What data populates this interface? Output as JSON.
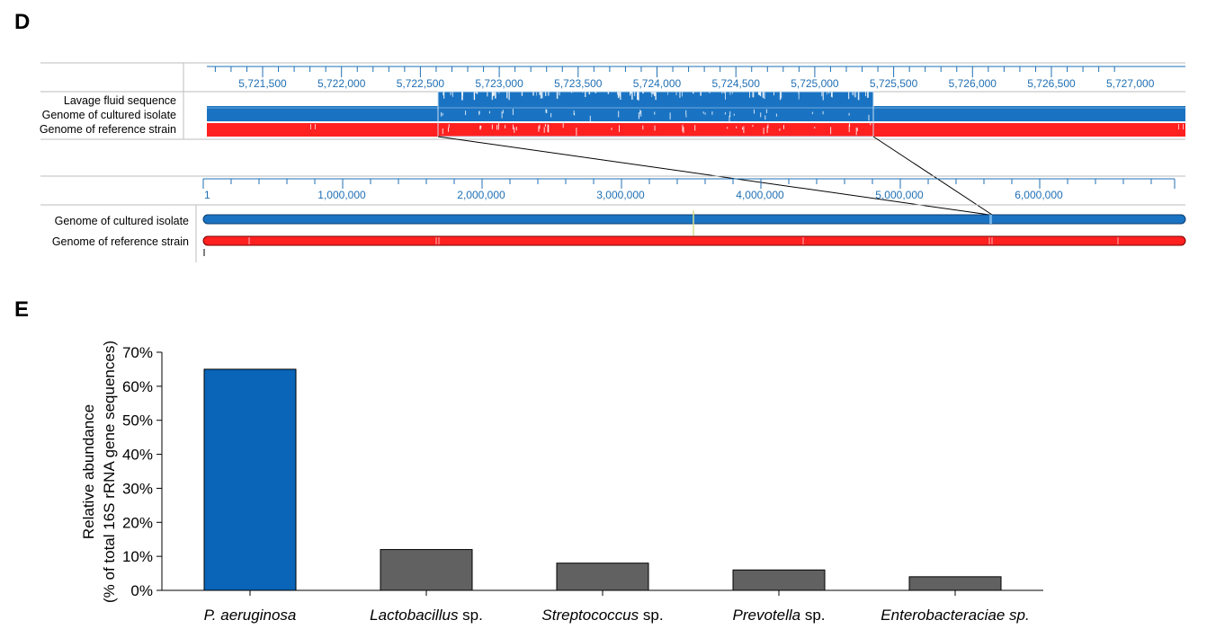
{
  "panel_d": {
    "letter": "D",
    "zoom_view": {
      "ticks": [
        "5,721,500",
        "5,722,000",
        "5,722,500",
        "5,723,000",
        "5,723,500",
        "5,724,000",
        "5,724,500",
        "5,725,000",
        "5,725,500",
        "5,726,000",
        "5,726,500",
        "5,727,000"
      ],
      "tracks": [
        "Lavage fluid sequence",
        "Genome of cultured isolate",
        "Genome of reference strain"
      ]
    },
    "whole_view": {
      "ticks": [
        "1",
        "1,000,000",
        "2,000,000",
        "3,000,000",
        "4,000,000",
        "5,000,000",
        "6,000,000"
      ],
      "tracks": [
        "Genome of cultured isolate",
        "Genome of reference strain"
      ]
    },
    "colors": {
      "cultured_isolate": "#1a73c2",
      "reference_strain": "#ff2020",
      "ticks": "#1f6fb4"
    }
  },
  "panel_e": {
    "letter": "E"
  },
  "chart_data": {
    "type": "bar",
    "categories": [
      {
        "italic": "P. aeruginosa",
        "suffix": ""
      },
      {
        "italic": "Lactobacillus",
        "suffix": " sp."
      },
      {
        "italic": "Streptococcus",
        "suffix": " sp."
      },
      {
        "italic": "Prevotella",
        "suffix": " sp."
      },
      {
        "italic": "Enterobacteraciae sp.",
        "suffix": ""
      }
    ],
    "values": [
      65,
      12,
      8,
      6,
      4
    ],
    "bar_colors": [
      "#0a64b8",
      "#616161",
      "#616161",
      "#616161",
      "#616161"
    ],
    "ylabel_line1": "Relative abundance",
    "ylabel_line2": "(% of total 16S rRNA gene sequences)",
    "ylim": [
      0,
      70
    ],
    "yticks": [
      0,
      10,
      20,
      30,
      40,
      50,
      60,
      70
    ],
    "ytick_labels": [
      "0%",
      "10%",
      "20%",
      "30%",
      "40%",
      "50%",
      "60%",
      "70%"
    ],
    "grid": false
  }
}
